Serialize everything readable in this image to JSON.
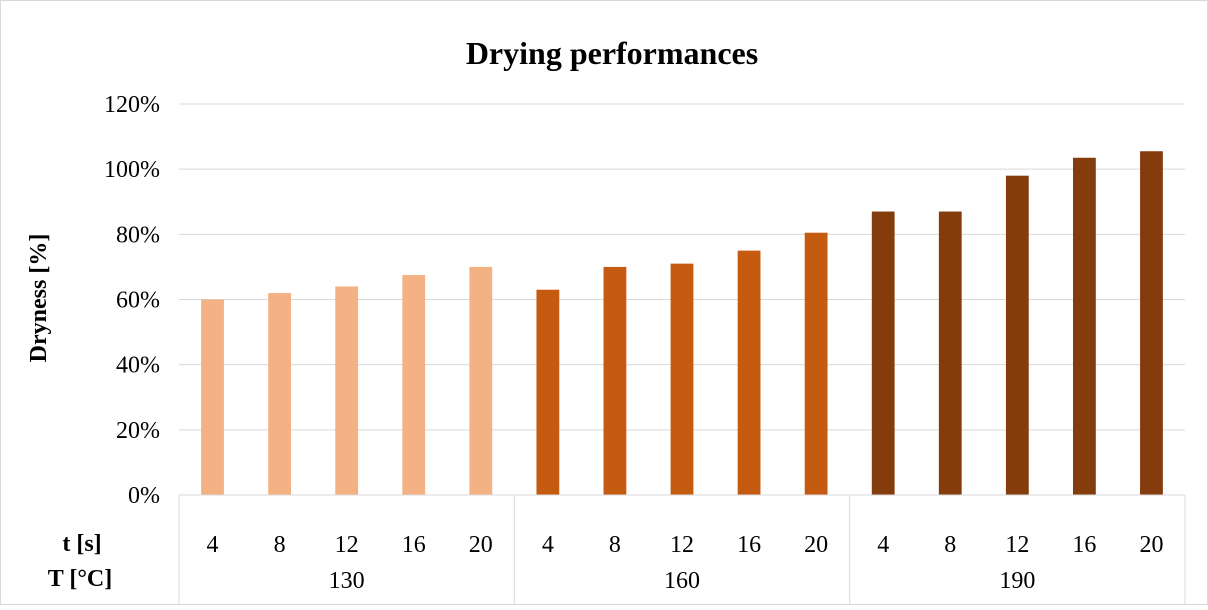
{
  "chart_data": {
    "type": "bar",
    "title": "Drying performances",
    "ylabel": "Dryness [%]",
    "ylim": [
      0,
      120
    ],
    "y_ticks": [
      "0%",
      "20%",
      "40%",
      "60%",
      "80%",
      "100%",
      "120%"
    ],
    "grid": true,
    "legend": "none",
    "x_row_labels": {
      "inner": "t [s]",
      "outer": "T [°C]"
    },
    "groups": [
      {
        "label": "130",
        "color": "#F4B183",
        "categories": [
          "4",
          "8",
          "12",
          "16",
          "20"
        ],
        "values": [
          60,
          62,
          64,
          67.5,
          70
        ]
      },
      {
        "label": "160",
        "color": "#C55A11",
        "categories": [
          "4",
          "8",
          "12",
          "16",
          "20"
        ],
        "values": [
          63,
          70,
          71,
          75,
          80.5
        ]
      },
      {
        "label": "190",
        "color": "#843C0C",
        "categories": [
          "4",
          "8",
          "12",
          "16",
          "20"
        ],
        "values": [
          87,
          87,
          98,
          103.5,
          105.5
        ]
      }
    ]
  }
}
